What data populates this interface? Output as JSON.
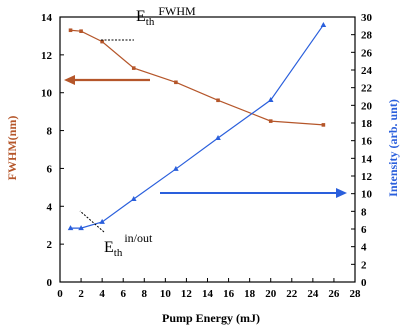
{
  "chart_data": {
    "type": "line",
    "xlabel": "Pump Energy (mJ)",
    "ylabel_left": "FWHM(nm)",
    "ylabel_right": "Intensity (arb. unt)",
    "xlim": [
      0,
      28
    ],
    "ylim_left": [
      0,
      14
    ],
    "ylim_right": [
      0,
      30
    ],
    "x_ticks": [
      "0",
      "2",
      "4",
      "6",
      "8",
      "10",
      "12",
      "14",
      "16",
      "18",
      "20",
      "22",
      "24",
      "26",
      "28"
    ],
    "y_left_ticks": [
      "0",
      "2",
      "4",
      "6",
      "8",
      "10",
      "12",
      "14"
    ],
    "y_right_ticks": [
      "0",
      "2",
      "4",
      "6",
      "8",
      "10",
      "12",
      "14",
      "16",
      "18",
      "20",
      "22",
      "24",
      "26",
      "28",
      "30"
    ],
    "grid": false,
    "series": [
      {
        "axis": "left",
        "color": "#b5562a",
        "marker": "square",
        "points": [
          [
            1,
            13.3
          ],
          [
            2,
            13.25
          ],
          [
            4,
            12.7
          ],
          [
            7,
            11.3
          ],
          [
            11,
            10.55
          ],
          [
            15,
            9.6
          ],
          [
            20,
            8.5
          ],
          [
            25,
            8.3
          ]
        ]
      },
      {
        "axis": "right",
        "color": "#2a5fdc",
        "marker": "triangle",
        "points": [
          [
            1,
            6.1
          ],
          [
            2,
            6.1
          ],
          [
            4,
            6.8
          ],
          [
            7,
            9.4
          ],
          [
            11,
            12.8
          ],
          [
            15,
            16.3
          ],
          [
            20,
            20.6
          ],
          [
            25,
            29.1
          ]
        ]
      }
    ],
    "annotations": {
      "fwhm_threshold": {
        "main": "E",
        "sub": "th",
        "sup": "FWHM"
      },
      "inout_threshold": {
        "main": "E",
        "sub": "th",
        "sup": "in/out"
      }
    },
    "arrow_colors": {
      "left": "#b5562a",
      "right": "#2a5fdc"
    }
  }
}
